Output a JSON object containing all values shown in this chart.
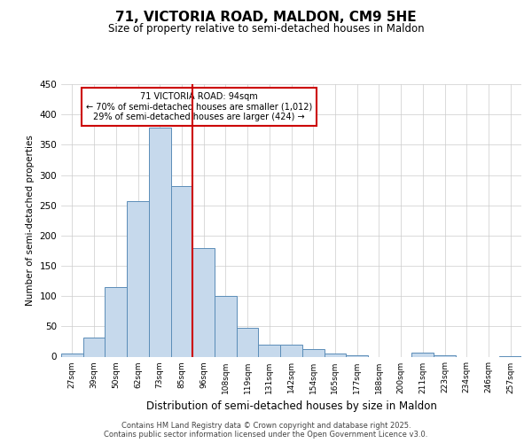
{
  "title": "71, VICTORIA ROAD, MALDON, CM9 5HE",
  "subtitle": "Size of property relative to semi-detached houses in Maldon",
  "xlabel": "Distribution of semi-detached houses by size in Maldon",
  "ylabel": "Number of semi-detached properties",
  "categories": [
    "27sqm",
    "39sqm",
    "50sqm",
    "62sqm",
    "73sqm",
    "85sqm",
    "96sqm",
    "108sqm",
    "119sqm",
    "131sqm",
    "142sqm",
    "154sqm",
    "165sqm",
    "177sqm",
    "188sqm",
    "200sqm",
    "211sqm",
    "223sqm",
    "234sqm",
    "246sqm",
    "257sqm"
  ],
  "values": [
    5,
    32,
    115,
    257,
    378,
    282,
    180,
    100,
    47,
    20,
    20,
    13,
    5,
    2,
    0,
    0,
    7,
    2,
    0,
    0,
    1
  ],
  "bar_color": "#c6d9ec",
  "bar_edge_color": "#5b8db8",
  "vline_x_index": 6,
  "vline_color": "#cc0000",
  "annotation_title": "71 VICTORIA ROAD: 94sqm",
  "annotation_line1": "← 70% of semi-detached houses are smaller (1,012)",
  "annotation_line2": "29% of semi-detached houses are larger (424) →",
  "annotation_box_facecolor": "#ffffff",
  "annotation_box_edgecolor": "#cc0000",
  "ylim": [
    0,
    450
  ],
  "yticks": [
    0,
    50,
    100,
    150,
    200,
    250,
    300,
    350,
    400,
    450
  ],
  "footer_line1": "Contains HM Land Registry data © Crown copyright and database right 2025.",
  "footer_line2": "Contains public sector information licensed under the Open Government Licence v3.0.",
  "bg_color": "#ffffff",
  "plot_bg_color": "#ffffff",
  "grid_color": "#cccccc"
}
